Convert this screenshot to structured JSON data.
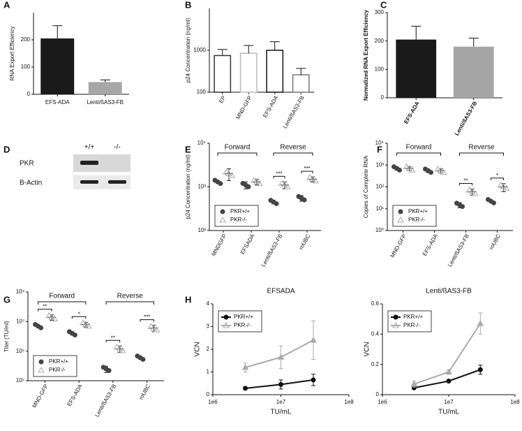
{
  "chart_data": [
    {
      "panel": "A",
      "type": "bar",
      "ylabel": "RNA Export Efficiency",
      "categories": [
        "EFS-ADA",
        "Lenti/ßAS3-FB"
      ],
      "values": [
        205,
        45
      ],
      "errors": [
        47,
        8
      ],
      "colors": [
        "#1a1a1a",
        "#a6a6a6"
      ],
      "ylim": [
        0,
        300
      ],
      "yticks": [
        0,
        100,
        200
      ]
    },
    {
      "panel": "B",
      "type": "bar",
      "style": "outline",
      "yscale": "log",
      "ylabel": "p24 Concentration (ng/ml)",
      "categories": [
        "EP",
        "MND-GFP",
        "EFS-ADA",
        "Lenti/ßAS3-FB"
      ],
      "values": [
        750,
        850,
        1000,
        260
      ],
      "errors": [
        300,
        450,
        600,
        110
      ],
      "colors": [
        "#333333",
        "#bbbbbb",
        "#111111",
        "#777777"
      ],
      "ylim": [
        100,
        10000
      ],
      "yticks": [
        100,
        1000
      ]
    },
    {
      "panel": "C",
      "type": "bar",
      "ylabel": "Normalized RNA Export Efficiency",
      "categories": [
        "EFS-ADA",
        "Lenti/ßAS3-FB"
      ],
      "values": [
        205,
        180
      ],
      "errors": [
        47,
        30
      ],
      "colors": [
        "#1a1a1a",
        "#a6a6a6"
      ],
      "ylim": [
        0,
        300
      ],
      "yticks": [
        0,
        100,
        200,
        300
      ]
    },
    {
      "panel": "D",
      "type": "blot",
      "lanes": [
        "+/+",
        "-/-"
      ],
      "rows": [
        "PKR",
        "B-Actin"
      ]
    },
    {
      "panel": "E",
      "type": "scatter",
      "yscale": "log",
      "ylabel": "p24 Concentration (ng/ml)",
      "categories": [
        "MNDGFP",
        "EFSADA",
        "Lenti/ßAS3-FB",
        "roUBC"
      ],
      "groups": [
        "Forward",
        "Reverse"
      ],
      "significance": [
        null,
        null,
        "***",
        "***"
      ],
      "legend": "lower left",
      "series": [
        {
          "name": "PKR+/+",
          "color": "#444444",
          "marker": "circle",
          "values": [
            1300,
            1100,
            450,
            550
          ],
          "errors": [
            100,
            200,
            40,
            80
          ]
        },
        {
          "name": "PKR-/-",
          "color": "#aaaaaa",
          "marker": "triangle",
          "values": [
            2000,
            1300,
            1100,
            1500
          ],
          "errors": [
            600,
            200,
            200,
            200
          ]
        }
      ],
      "ylim": [
        100,
        10000
      ],
      "yticks": [
        {
          "value": 100,
          "label": "10²"
        },
        {
          "value": 1000,
          "label": "10³"
        },
        {
          "value": 10000,
          "label": "10⁴"
        }
      ]
    },
    {
      "panel": "F",
      "type": "scatter",
      "yscale": "log",
      "ylabel": "Copies of Complete RNA",
      "categories": [
        "MND-GFP",
        "EFS-ADA",
        "Lenti/ßAS3-FB",
        "roUBC"
      ],
      "groups": [
        "Forward",
        "Reverse"
      ],
      "significance": [
        null,
        null,
        "**",
        "*"
      ],
      "legend": "lower left",
      "series": [
        {
          "name": "PKR+/+",
          "color": "#444444",
          "marker": "circle",
          "values": [
            700,
            550,
            15,
            22
          ],
          "errors": [
            100,
            100,
            4,
            3
          ]
        },
        {
          "name": "PKR-/-",
          "color": "#aaaaaa",
          "marker": "triangle",
          "values": [
            700,
            550,
            60,
            100
          ],
          "errors": [
            150,
            120,
            20,
            40
          ]
        }
      ],
      "ylim": [
        1,
        10000
      ],
      "yticks": [
        {
          "value": 1,
          "label": "10⁰"
        },
        {
          "value": 10,
          "label": "10¹"
        },
        {
          "value": 100,
          "label": "10²"
        },
        {
          "value": 1000,
          "label": "10³"
        },
        {
          "value": 10000,
          "label": "10⁴"
        }
      ]
    },
    {
      "panel": "G",
      "type": "scatter",
      "yscale": "log",
      "ylabel": "Titer (TU/ml)",
      "categories": [
        "MND-GFP",
        "EFS-ADA",
        "Lenti/ßAS3-FB",
        "roUBC"
      ],
      "groups": [
        "Forward",
        "Reverse"
      ],
      "significance": [
        "**",
        "*",
        "**",
        "***"
      ],
      "legend": "lower left",
      "series": [
        {
          "name": "PKR+/+",
          "color": "#444444",
          "marker": "circle",
          "values": [
            7000000,
            4000000,
            250000,
            600000
          ],
          "errors": [
            700000,
            500000,
            60000,
            60000
          ]
        },
        {
          "name": "PKR-/-",
          "color": "#aaaaaa",
          "marker": "triangle",
          "values": [
            14000000,
            8000000,
            1200000,
            6000000
          ],
          "errors": [
            3000000,
            1500000,
            300000,
            1500000
          ]
        }
      ],
      "ylim": [
        100000,
        100000000
      ],
      "yticks": [
        {
          "value": 100000,
          "label": "10⁵"
        },
        {
          "value": 1000000,
          "label": "10⁶"
        },
        {
          "value": 10000000,
          "label": "10⁷"
        },
        {
          "value": 100000000,
          "label": "10⁸"
        }
      ]
    },
    {
      "panel": "H",
      "type": "line",
      "xscale": "log",
      "title": "EFSADA",
      "xlabel": "TU/mL",
      "ylabel": "VCN",
      "legend": "upper left",
      "x": [
        3000000,
        10000000,
        30000000
      ],
      "series": [
        {
          "name": "PKR+/+",
          "color": "#111111",
          "marker": "circle",
          "values": [
            0.28,
            0.45,
            0.65
          ],
          "errors": [
            0.05,
            0.2,
            0.25
          ]
        },
        {
          "name": "PKR-/-",
          "color": "#aaaaaa",
          "marker": "triangle",
          "values": [
            1.2,
            1.65,
            2.4
          ],
          "errors": [
            0.2,
            0.5,
            0.85
          ]
        }
      ],
      "xlim": [
        1000000,
        100000000
      ],
      "xticks": [
        {
          "value": 1000000,
          "label": "1e6"
        },
        {
          "value": 10000000,
          "label": "1e7"
        },
        {
          "value": 100000000,
          "label": "1e8"
        }
      ],
      "ylim": [
        0,
        4
      ],
      "yticks": [
        0,
        1,
        2,
        3,
        4
      ]
    },
    {
      "type": "line",
      "xscale": "log",
      "title": "Lenti/ßAS3-FB",
      "xlabel": "TU/mL",
      "ylabel": "VCN",
      "legend": "upper left",
      "x": [
        3000000,
        10000000,
        30000000
      ],
      "series": [
        {
          "name": "PKR+/+",
          "color": "#111111",
          "marker": "circle",
          "values": [
            0.045,
            0.09,
            0.165
          ],
          "errors": [
            0.005,
            0.005,
            0.03
          ]
        },
        {
          "name": "PKR-/-",
          "color": "#aaaaaa",
          "marker": "triangle",
          "values": [
            0.07,
            0.15,
            0.47
          ],
          "errors": [
            0.02,
            0.015,
            0.07
          ]
        }
      ],
      "xlim": [
        1000000,
        100000000
      ],
      "xticks": [
        {
          "value": 1000000,
          "label": "1e6"
        },
        {
          "value": 10000000,
          "label": "1e7"
        },
        {
          "value": 100000000,
          "label": "1e8"
        }
      ],
      "ylim": [
        0,
        0.6
      ],
      "yticks": [
        0,
        0.2,
        0.4,
        0.6
      ]
    }
  ]
}
